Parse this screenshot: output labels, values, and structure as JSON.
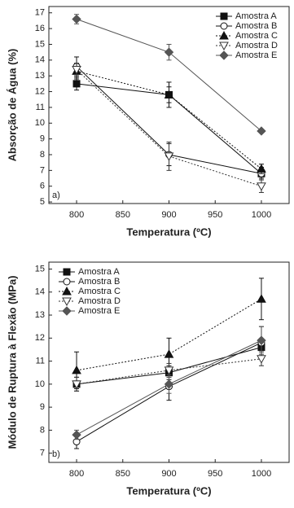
{
  "chart_data": [
    {
      "type": "line",
      "panel_label": "a)",
      "xlabel": "Temperatura (ºC)",
      "ylabel": "Absorção de Água (%)",
      "x": [
        800,
        900,
        1000
      ],
      "xlim": [
        770,
        1030
      ],
      "xticks": [
        800,
        850,
        900,
        950,
        1000
      ],
      "ylim": [
        4.9,
        17.4
      ],
      "yticks": [
        5,
        6,
        7,
        8,
        9,
        10,
        11,
        12,
        13,
        14,
        15,
        16,
        17
      ],
      "legend": "upper right",
      "series": [
        {
          "name": "Amostra A",
          "color": "#111111",
          "marker": "square",
          "linestyle": "solid",
          "values": [
            12.5,
            11.8,
            6.8
          ],
          "errors": [
            0.4,
            0.5,
            0.3
          ]
        },
        {
          "name": "Amostra B",
          "color": "#111111",
          "marker": "circle",
          "linestyle": "solid",
          "values": [
            13.6,
            8.0,
            6.8
          ],
          "errors": [
            0.6,
            0.7,
            0.4
          ]
        },
        {
          "name": "Amostra C",
          "color": "#111111",
          "marker": "triangle",
          "linestyle": "dotted",
          "values": [
            13.3,
            11.8,
            7.1
          ],
          "errors": [
            0.5,
            0.8,
            0.3
          ]
        },
        {
          "name": "Amostra D",
          "color": "#333333",
          "marker": "triangle-down",
          "linestyle": "dotted",
          "values": [
            13.4,
            7.9,
            6.0
          ],
          "errors": [
            0.4,
            0.9,
            0.4
          ]
        },
        {
          "name": "Amostra E",
          "color": "#555555",
          "marker": "diamond",
          "linestyle": "solid",
          "values": [
            16.6,
            14.5,
            9.5
          ],
          "errors": [
            0.3,
            0.5,
            0.1
          ]
        }
      ]
    },
    {
      "type": "line",
      "panel_label": "b)",
      "xlabel": "Temperatura (ºC)",
      "ylabel": "Módulo de Ruptura à Flexão (MPa)",
      "x": [
        800,
        900,
        1000
      ],
      "xlim": [
        770,
        1030
      ],
      "xticks": [
        800,
        850,
        900,
        950,
        1000
      ],
      "ylim": [
        6.6,
        15.3
      ],
      "yticks": [
        7,
        8,
        9,
        10,
        11,
        12,
        13,
        14,
        15
      ],
      "legend": "upper left",
      "series": [
        {
          "name": "Amostra A",
          "color": "#111111",
          "marker": "square",
          "linestyle": "solid",
          "values": [
            10.0,
            10.5,
            11.6
          ],
          "errors": [
            0.3,
            0.3,
            0.3
          ]
        },
        {
          "name": "Amostra B",
          "color": "#111111",
          "marker": "circle",
          "linestyle": "solid",
          "values": [
            7.5,
            9.9,
            11.8
          ],
          "errors": [
            0.3,
            0.6,
            0.7
          ]
        },
        {
          "name": "Amostra C",
          "color": "#111111",
          "marker": "triangle",
          "linestyle": "dotted",
          "values": [
            10.6,
            11.3,
            13.7
          ],
          "errors": [
            0.8,
            0.7,
            0.9
          ]
        },
        {
          "name": "Amostra D",
          "color": "#333333",
          "marker": "triangle-down",
          "linestyle": "dotted",
          "values": [
            10.0,
            10.6,
            11.1
          ],
          "errors": [
            0.3,
            0.3,
            0.3
          ]
        },
        {
          "name": "Amostra E",
          "color": "#555555",
          "marker": "diamond",
          "linestyle": "solid",
          "values": [
            7.8,
            10.0,
            11.9
          ],
          "errors": [
            0.2,
            0.4,
            0.6
          ]
        }
      ]
    }
  ]
}
